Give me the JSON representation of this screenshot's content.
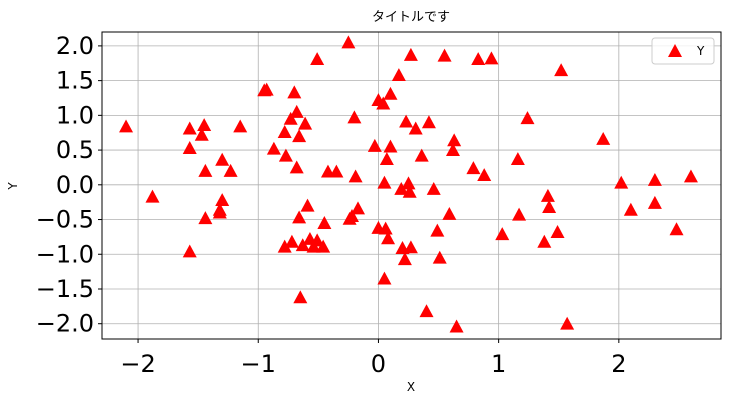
{
  "chart_data": {
    "type": "scatter",
    "title": "タイトルです",
    "xlabel": "X",
    "ylabel": "Y",
    "xlim": [
      -2.3,
      2.85
    ],
    "ylim": [
      -2.22,
      2.2
    ],
    "xticks": [
      -2,
      -1,
      0,
      1,
      2
    ],
    "xtick_labels": [
      "−2",
      "−1",
      "0",
      "1",
      "2"
    ],
    "yticks": [
      2.0,
      1.5,
      1.0,
      0.5,
      0.0,
      -0.5,
      -1.0,
      -1.5,
      -2.0
    ],
    "ytick_labels": [
      "2.0",
      "1.5",
      "1.0",
      "0.5",
      "0.0",
      "−0.5",
      "−1.0",
      "−1.5",
      "−2.0"
    ],
    "grid": true,
    "legend": {
      "position": "top-right",
      "entries": [
        "Y"
      ]
    },
    "marker": "triangle-up",
    "color": "#ff0000",
    "series": [
      {
        "name": "Y",
        "points": [
          [
            -2.1,
            0.84
          ],
          [
            -1.88,
            -0.17
          ],
          [
            -1.57,
            0.81
          ],
          [
            -1.57,
            0.53
          ],
          [
            -1.57,
            -0.96
          ],
          [
            -1.47,
            0.72
          ],
          [
            -1.45,
            0.86
          ],
          [
            -1.44,
            0.2
          ],
          [
            -1.44,
            -0.48
          ],
          [
            -1.32,
            -0.36
          ],
          [
            -1.32,
            -0.4
          ],
          [
            -1.3,
            -0.22
          ],
          [
            -1.3,
            0.36
          ],
          [
            -1.23,
            0.2
          ],
          [
            -1.15,
            0.84
          ],
          [
            -0.95,
            1.36
          ],
          [
            -0.93,
            1.37
          ],
          [
            -0.87,
            0.52
          ],
          [
            -0.78,
            0.76
          ],
          [
            -0.78,
            -0.89
          ],
          [
            -0.77,
            0.42
          ],
          [
            -0.73,
            0.95
          ],
          [
            -0.72,
            -0.82
          ],
          [
            -0.7,
            1.33
          ],
          [
            -0.68,
            0.25
          ],
          [
            -0.68,
            1.05
          ],
          [
            -0.66,
            0.7
          ],
          [
            -0.66,
            -0.47
          ],
          [
            -0.65,
            -1.62
          ],
          [
            -0.63,
            -0.87
          ],
          [
            -0.61,
            0.88
          ],
          [
            -0.59,
            -0.3
          ],
          [
            -0.57,
            -0.78
          ],
          [
            -0.54,
            -0.89
          ],
          [
            -0.51,
            1.81
          ],
          [
            -0.51,
            -0.8
          ],
          [
            -0.46,
            -0.89
          ],
          [
            -0.45,
            -0.55
          ],
          [
            -0.42,
            0.19
          ],
          [
            -0.35,
            0.19
          ],
          [
            -0.25,
            2.05
          ],
          [
            -0.24,
            -0.49
          ],
          [
            -0.22,
            -0.45
          ],
          [
            -0.2,
            0.97
          ],
          [
            -0.19,
            0.12
          ],
          [
            -0.17,
            -0.34
          ],
          [
            -0.03,
            0.56
          ],
          [
            0.0,
            1.22
          ],
          [
            0.0,
            -0.62
          ],
          [
            0.04,
            1.17
          ],
          [
            0.05,
            0.03
          ],
          [
            0.05,
            -1.35
          ],
          [
            0.06,
            -0.63
          ],
          [
            0.07,
            0.37
          ],
          [
            0.08,
            -0.77
          ],
          [
            0.1,
            0.55
          ],
          [
            0.1,
            1.31
          ],
          [
            0.17,
            1.58
          ],
          [
            0.19,
            -0.06
          ],
          [
            0.2,
            -0.91
          ],
          [
            0.22,
            -1.07
          ],
          [
            0.23,
            0.91
          ],
          [
            0.25,
            0.02
          ],
          [
            0.26,
            -0.1
          ],
          [
            0.27,
            -0.9
          ],
          [
            0.27,
            1.87
          ],
          [
            0.31,
            0.81
          ],
          [
            0.36,
            0.42
          ],
          [
            0.4,
            -1.82
          ],
          [
            0.42,
            0.9
          ],
          [
            0.46,
            -0.06
          ],
          [
            0.49,
            -0.66
          ],
          [
            0.51,
            -1.05
          ],
          [
            0.55,
            1.86
          ],
          [
            0.59,
            -0.42
          ],
          [
            0.62,
            0.5
          ],
          [
            0.63,
            0.64
          ],
          [
            0.65,
            -2.04
          ],
          [
            0.79,
            0.24
          ],
          [
            0.83,
            1.81
          ],
          [
            0.88,
            0.14
          ],
          [
            0.94,
            1.82
          ],
          [
            1.03,
            -0.71
          ],
          [
            1.16,
            0.37
          ],
          [
            1.17,
            -0.43
          ],
          [
            1.24,
            0.96
          ],
          [
            1.38,
            -0.82
          ],
          [
            1.41,
            -0.16
          ],
          [
            1.42,
            -0.32
          ],
          [
            1.49,
            -0.68
          ],
          [
            1.52,
            1.65
          ],
          [
            1.57,
            -2.0
          ],
          [
            1.87,
            0.66
          ],
          [
            2.02,
            0.03
          ],
          [
            2.1,
            -0.36
          ],
          [
            2.3,
            0.07
          ],
          [
            2.3,
            -0.26
          ],
          [
            2.48,
            -0.64
          ],
          [
            2.6,
            0.12
          ]
        ]
      }
    ]
  }
}
